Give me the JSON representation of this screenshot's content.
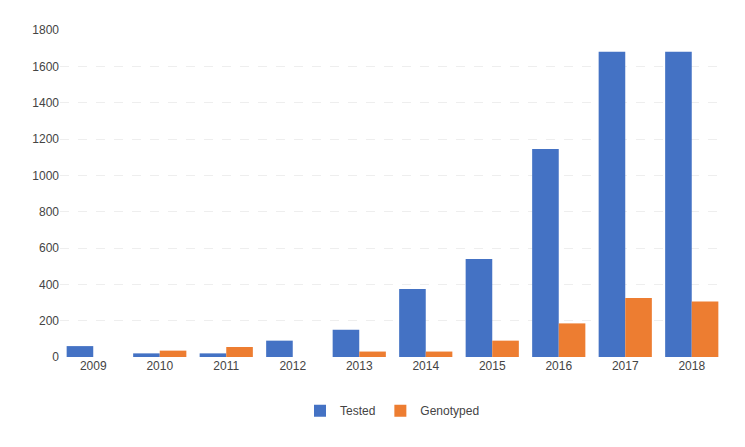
{
  "chart_data": {
    "type": "bar",
    "categories": [
      "2009",
      "2010",
      "2011",
      "2012",
      "2013",
      "2014",
      "2015",
      "2016",
      "2017",
      "2018"
    ],
    "series": [
      {
        "name": "Tested",
        "color": "#4472C4",
        "values": [
          60,
          20,
          20,
          90,
          150,
          375,
          540,
          1145,
          1680,
          1680
        ]
      },
      {
        "name": "Genotyped",
        "color": "#ED7D31",
        "values": [
          0,
          35,
          55,
          0,
          30,
          30,
          90,
          185,
          325,
          305
        ]
      }
    ],
    "ylim": [
      0,
      1800
    ],
    "yticks": [
      0,
      200,
      400,
      600,
      800,
      1000,
      1200,
      1400,
      1600,
      1800
    ],
    "grid": true,
    "legend": "bottom"
  }
}
